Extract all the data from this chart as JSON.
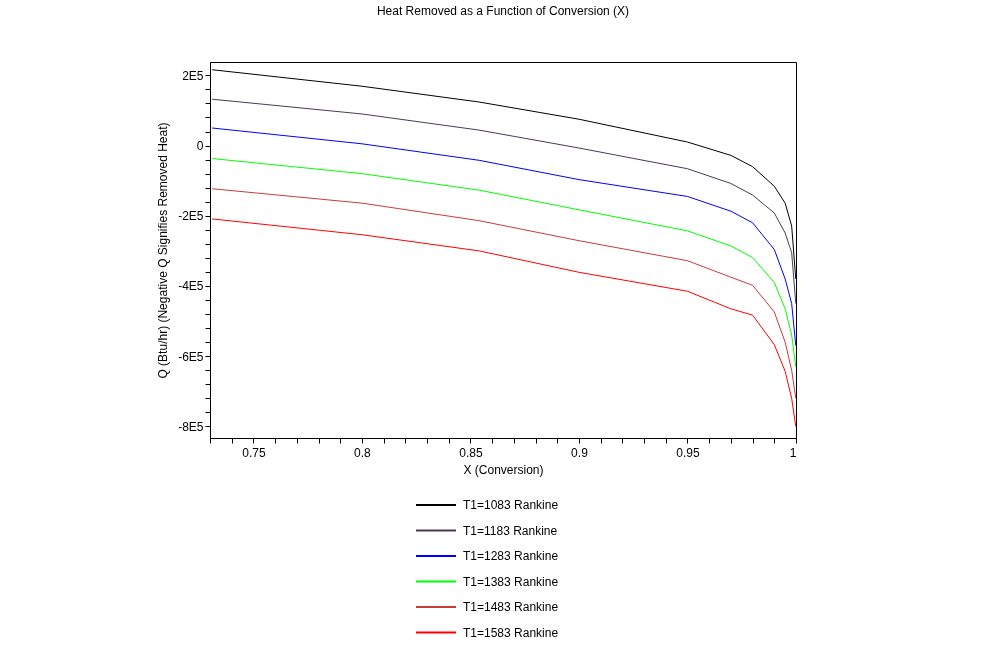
{
  "chart_data": {
    "type": "line",
    "title": "Heat Removed as a Function of Conversion (X)",
    "xlabel": "X (Conversion)",
    "ylabel": "Q (Btu/hr) (Negative Q Signifies Removed Heat)",
    "x": [
      0.731,
      0.8,
      0.854,
      0.9,
      0.95,
      0.97,
      0.98,
      0.99,
      0.995,
      0.998,
      0.9999
    ],
    "series": [
      {
        "name": "T1=1083 Rankine",
        "color": "#000000",
        "values": [
          216000,
          169000,
          124000,
          75000,
          10000,
          -28000,
          -60000,
          -116000,
          -164000,
          -229000,
          -380000
        ]
      },
      {
        "name": "T1=1183 Rankine",
        "color": "#4b3a52",
        "values": [
          132000,
          90000,
          44000,
          -7000,
          -66000,
          -108000,
          -141000,
          -192000,
          -249000,
          -305000,
          -450000
        ]
      },
      {
        "name": "T1=1283 Rankine",
        "color": "#0000ff",
        "values": [
          50000,
          5000,
          -42000,
          -97000,
          -145000,
          -187000,
          -220000,
          -296000,
          -380000,
          -450000,
          -570000
        ]
      },
      {
        "name": "T1=1383 Rankine",
        "color": "#00ff00",
        "values": [
          -37000,
          -80000,
          -127000,
          -183000,
          -243000,
          -286000,
          -319000,
          -390000,
          -465000,
          -540000,
          -630000
        ]
      },
      {
        "name": "T1=1483 Rankine",
        "color": "#c83c3c",
        "values": [
          -123000,
          -164000,
          -214000,
          -271000,
          -328000,
          -375000,
          -398000,
          -474000,
          -560000,
          -640000,
          -720000
        ]
      },
      {
        "name": "T1=1583 Rankine",
        "color": "#ff0000",
        "values": [
          -209000,
          -254000,
          -300000,
          -361000,
          -415000,
          -465000,
          -483000,
          -567000,
          -643000,
          -720000,
          -800000
        ]
      }
    ],
    "xlim": [
      0.73,
      1
    ],
    "ylim": [
      -833000,
      238000
    ],
    "xticks": [
      {
        "value": 0.73,
        "label": null
      },
      {
        "value": 0.74,
        "label": null
      },
      0.75,
      {
        "value": 0.76,
        "label": null
      },
      {
        "value": 0.77,
        "label": null
      },
      {
        "value": 0.78,
        "label": null
      },
      {
        "value": 0.79,
        "label": null
      },
      0.8,
      {
        "value": 0.81,
        "label": null
      },
      {
        "value": 0.82,
        "label": null
      },
      {
        "value": 0.83,
        "label": null
      },
      {
        "value": 0.84,
        "label": null
      },
      0.85,
      {
        "value": 0.86,
        "label": null
      },
      {
        "value": 0.87,
        "label": null
      },
      {
        "value": 0.88,
        "label": null
      },
      {
        "value": 0.89,
        "label": null
      },
      0.9,
      {
        "value": 0.91,
        "label": null
      },
      {
        "value": 0.92,
        "label": null
      },
      {
        "value": 0.93,
        "label": null
      },
      {
        "value": 0.94,
        "label": null
      },
      0.95,
      {
        "value": 0.96,
        "label": null
      },
      {
        "value": 0.97,
        "label": null
      },
      {
        "value": 0.98,
        "label": null
      },
      {
        "value": 0.99,
        "label": null
      },
      1
    ],
    "yticks": [
      {
        "value": -800000,
        "label": "-8E5"
      },
      {
        "value": -760000,
        "label": null
      },
      {
        "value": -720000,
        "label": null
      },
      {
        "value": -680000,
        "label": null
      },
      {
        "value": -640000,
        "label": null
      },
      {
        "value": -600000,
        "label": "-6E5"
      },
      {
        "value": -560000,
        "label": null
      },
      {
        "value": -520000,
        "label": null
      },
      {
        "value": -480000,
        "label": null
      },
      {
        "value": -440000,
        "label": null
      },
      {
        "value": -400000,
        "label": "-4E5"
      },
      {
        "value": -360000,
        "label": null
      },
      {
        "value": -320000,
        "label": null
      },
      {
        "value": -280000,
        "label": null
      },
      {
        "value": -240000,
        "label": null
      },
      {
        "value": -200000,
        "label": "-2E5"
      },
      {
        "value": -160000,
        "label": null
      },
      {
        "value": -120000,
        "label": null
      },
      {
        "value": -80000,
        "label": null
      },
      {
        "value": -40000,
        "label": null
      },
      0,
      {
        "value": 40000,
        "label": null
      },
      {
        "value": 80000,
        "label": null
      },
      {
        "value": 120000,
        "label": null
      },
      {
        "value": 160000,
        "label": null
      },
      {
        "value": 200000,
        "label": "2E5"
      }
    ],
    "grid": false,
    "legend": "bottom"
  }
}
